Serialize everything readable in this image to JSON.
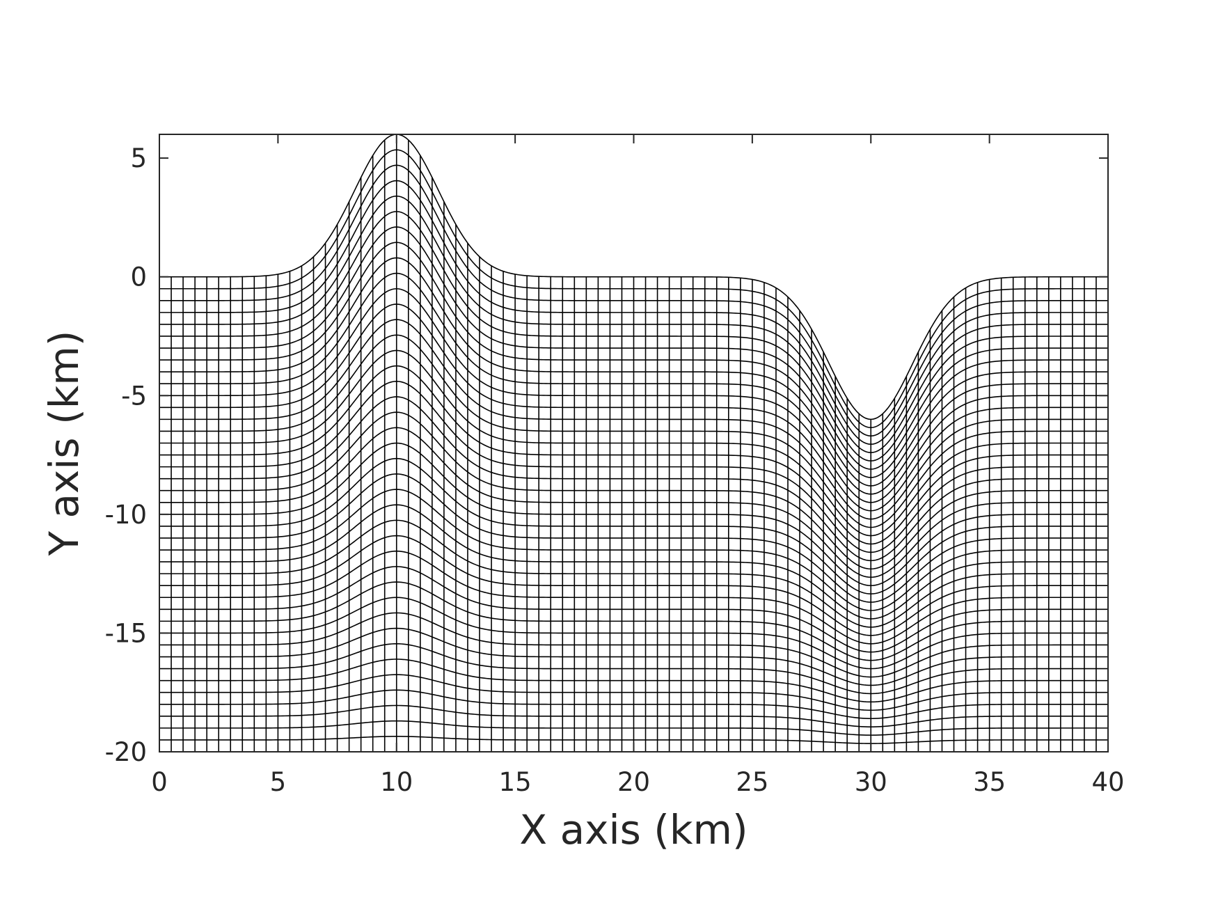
{
  "chart_data": {
    "type": "line",
    "description_of_marks": "curvilinear terrain-following mesh",
    "xlabel": "X axis (km)",
    "ylabel": "Y axis (km)",
    "xlim": [
      0,
      40
    ],
    "ylim": [
      -20,
      6
    ],
    "x_ticks": [
      0,
      5,
      10,
      15,
      20,
      25,
      30,
      35,
      40
    ],
    "x_tick_labels": [
      "0",
      "5",
      "10",
      "15",
      "20",
      "25",
      "30",
      "35",
      "40"
    ],
    "y_ticks": [
      5,
      0,
      -5,
      -10,
      -15,
      -20
    ],
    "y_tick_labels": [
      "5",
      "0",
      "-5",
      "-10",
      "-15",
      "-20"
    ],
    "grid": false,
    "mesh": {
      "bottom": -20,
      "surface": [
        {
          "center": 10,
          "amplitude": 6,
          "width": 2.5
        },
        {
          "center": 30,
          "amplitude": -6,
          "width": 2.5
        }
      ],
      "columns": 81,
      "rows": 41
    },
    "line_color": "#000000"
  }
}
